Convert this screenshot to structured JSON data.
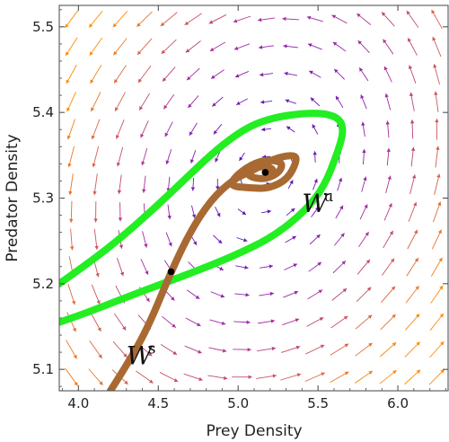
{
  "chart_data": {
    "type": "phase-portrait",
    "xlabel": "Prey Density",
    "ylabel": "Predator Density",
    "xlim": [
      3.88,
      6.32
    ],
    "ylim": [
      5.075,
      5.525
    ],
    "xticks": [
      4.0,
      4.5,
      5.0,
      5.5,
      6.0
    ],
    "xtick_labels": [
      "4.0",
      "4.5",
      "5.0",
      "5.5",
      "6.0"
    ],
    "yticks": [
      5.1,
      5.2,
      5.3,
      5.4,
      5.5
    ],
    "ytick_labels": [
      "5.1",
      "5.2",
      "5.3",
      "5.4",
      "5.5"
    ],
    "grid": false,
    "equilibria": [
      {
        "x": 5.17,
        "y": 5.33
      },
      {
        "x": 4.58,
        "y": 5.214
      }
    ],
    "series": [
      {
        "name": "W",
        "superscript": "u",
        "color": "#22ee22",
        "branches": [
          [
            [
              3.88,
              5.2
            ],
            [
              4.1,
              5.229
            ],
            [
              4.3,
              5.259
            ],
            [
              4.48,
              5.289
            ],
            [
              4.65,
              5.319
            ],
            [
              4.79,
              5.344
            ],
            [
              4.92,
              5.365
            ],
            [
              5.07,
              5.384
            ],
            [
              5.22,
              5.394
            ],
            [
              5.4,
              5.399
            ],
            [
              5.55,
              5.399
            ],
            [
              5.64,
              5.392
            ],
            [
              5.66,
              5.377
            ],
            [
              5.62,
              5.352
            ],
            [
              5.54,
              5.314
            ],
            [
              5.42,
              5.285
            ],
            [
              5.22,
              5.255
            ],
            [
              4.98,
              5.233
            ],
            [
              4.7,
              5.212
            ],
            [
              4.38,
              5.19
            ],
            [
              4.05,
              5.166
            ],
            [
              3.88,
              5.155
            ]
          ]
        ]
      },
      {
        "name": "W",
        "superscript": "s",
        "color": "#a86a32",
        "branches": [
          [
            [
              4.2,
              5.075
            ],
            [
              4.32,
              5.11
            ],
            [
              4.44,
              5.151
            ],
            [
              4.58,
              5.214
            ],
            [
              4.7,
              5.261
            ],
            [
              4.83,
              5.298
            ],
            [
              4.97,
              5.322
            ],
            [
              5.09,
              5.332
            ],
            [
              5.22,
              5.346
            ],
            [
              5.35,
              5.351
            ],
            [
              5.37,
              5.344
            ],
            [
              5.31,
              5.322
            ],
            [
              5.19,
              5.311
            ],
            [
              5.07,
              5.312
            ],
            [
              4.95,
              5.314
            ],
            [
              4.98,
              5.325
            ],
            [
              5.08,
              5.339
            ],
            [
              5.18,
              5.345
            ],
            [
              5.28,
              5.342
            ],
            [
              5.26,
              5.33
            ],
            [
              5.17,
              5.322
            ],
            [
              5.08,
              5.324
            ],
            [
              5.05,
              5.331
            ],
            [
              5.12,
              5.337
            ],
            [
              5.21,
              5.336
            ],
            [
              5.22,
              5.33
            ],
            [
              5.17,
              5.33
            ]
          ]
        ]
      }
    ],
    "annotations": [
      {
        "text": "W",
        "sup": "u",
        "x": 5.4,
        "y": 5.284
      },
      {
        "text": "W",
        "sup": "s",
        "x": 4.3,
        "y": 5.106
      }
    ],
    "vector_field": {
      "style": "arrows",
      "low_speed_color": "#3a12b4",
      "high_speed_color": "#ff8c00"
    }
  }
}
